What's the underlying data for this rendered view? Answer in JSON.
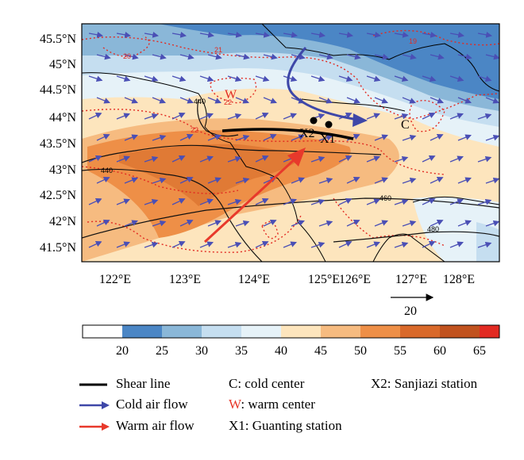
{
  "map": {
    "lat_labels": [
      "45.5°N",
      "45°N",
      "44.5°N",
      "44°N",
      "43.5°N",
      "43°N",
      "42.5°N",
      "42°N",
      "41.5°N"
    ],
    "lon_labels": [
      "122°E",
      "123°E",
      "124°E",
      "125°E",
      "126°E",
      "127°E",
      "128°E"
    ],
    "contour_labels_black": [
      "440",
      "440",
      "460",
      "480"
    ],
    "contour_labels_red": [
      "21",
      "20",
      "19",
      "22",
      "22"
    ],
    "marker_w": "W",
    "marker_c": "C",
    "station_x1": "X1",
    "station_x2": "X2",
    "vector_reference": "20"
  },
  "colorbar": {
    "ticks": [
      "20",
      "25",
      "30",
      "35",
      "40",
      "45",
      "50",
      "55",
      "60",
      "65"
    ],
    "colors": [
      "#ffffff",
      "#4b86c5",
      "#8ab7d8",
      "#c5def0",
      "#e6f2f8",
      "#fde5bd",
      "#f6bb80",
      "#ee8f47",
      "#d9692a",
      "#c1521e",
      "#e22a22"
    ]
  },
  "legend": {
    "shear_line": "Shear line",
    "cold_air_flow": "Cold air flow",
    "warm_air_flow": "Warm air flow",
    "cold_center": "C: cold center",
    "warm_center_letter": "W",
    "warm_center_text": ": warm center",
    "guanting": "X1: Guanting station",
    "sanjiazi": "X2: Sanjiazi station"
  },
  "colors": {
    "shear": "#000000",
    "cold_flow": "#3e47a8",
    "warm_flow": "#e8392b",
    "wind_vectors": "#4a4fb5"
  }
}
